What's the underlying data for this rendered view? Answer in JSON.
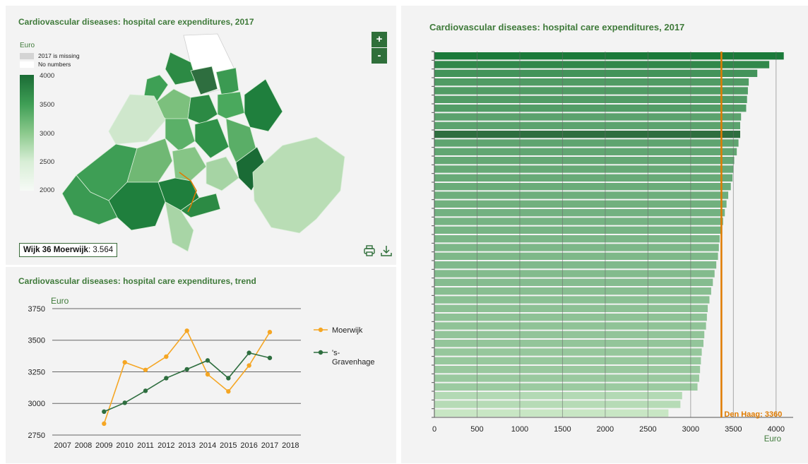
{
  "map_panel": {
    "title": "Cardiovascular diseases: hospital care expenditures, 2017",
    "legend": {
      "unit": "Euro",
      "missing_label": "2017 is missing",
      "no_numbers_label": "No numbers",
      "scale_labels": [
        "4000",
        "3500",
        "3000",
        "2500",
        "2000"
      ]
    },
    "zoom_in_label": "+",
    "zoom_out_label": "-",
    "selected_area": {
      "name": "Wijk 36 Moerwijk",
      "value": "3.564"
    },
    "icons": [
      "print-icon",
      "download-icon"
    ]
  },
  "chart_data": [
    {
      "type": "line",
      "title": "Cardiovascular diseases: hospital care expenditures, trend",
      "ylabel": "Euro",
      "xlabel": "",
      "categories": [
        "2007",
        "2008",
        "2009",
        "2010",
        "2011",
        "2012",
        "2013",
        "2014",
        "2015",
        "2016",
        "2017",
        "2018"
      ],
      "ylim": [
        2750,
        3800
      ],
      "yticks": [
        "2750",
        "3000",
        "3250",
        "3500",
        "3750"
      ],
      "grid": true,
      "legend": "right",
      "series": [
        {
          "name": "Moerwijk",
          "color": "#f5a623",
          "values": [
            null,
            null,
            2840,
            3325,
            3265,
            3370,
            3575,
            3230,
            3095,
            3300,
            3564,
            null
          ]
        },
        {
          "name": "'s-Gravenhage",
          "color": "#2e6e3f",
          "values": [
            null,
            null,
            2935,
            3005,
            3100,
            3200,
            3270,
            3340,
            3200,
            3400,
            3360,
            null
          ]
        }
      ]
    },
    {
      "type": "bar",
      "orientation": "horizontal",
      "title": "Cardiovascular diseases: hospital care expenditures, 2017",
      "xlabel": "Euro",
      "xlim": [
        0,
        4200
      ],
      "xticks": [
        "0",
        "500",
        "1000",
        "1500",
        "2000",
        "2500",
        "3000",
        "3500",
        "4000"
      ],
      "grid": true,
      "highlight_index": 9,
      "reference_line": {
        "label": "Den Haag",
        "value": 3360,
        "display": "3360",
        "color": "#e07b00"
      },
      "values": [
        4090,
        3920,
        3780,
        3680,
        3670,
        3660,
        3650,
        3590,
        3580,
        3580,
        3560,
        3540,
        3510,
        3500,
        3490,
        3470,
        3440,
        3420,
        3400,
        3380,
        3370,
        3340,
        3330,
        3320,
        3300,
        3280,
        3260,
        3240,
        3220,
        3200,
        3190,
        3180,
        3160,
        3150,
        3130,
        3120,
        3110,
        3100,
        3080,
        2900,
        2880,
        2740
      ]
    }
  ]
}
